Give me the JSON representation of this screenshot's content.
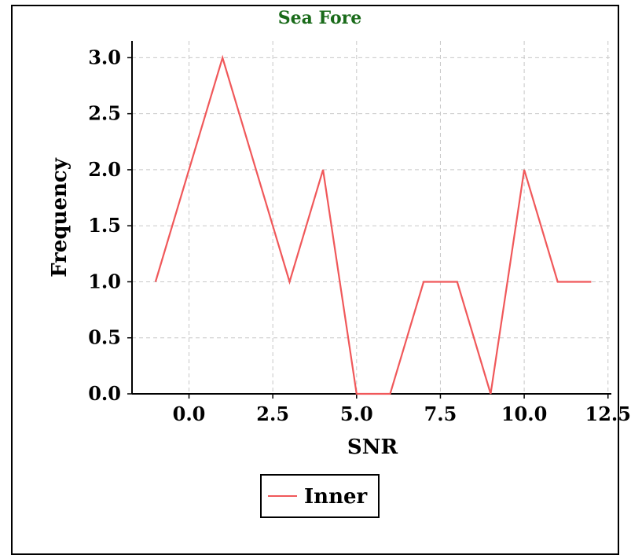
{
  "chart_data": {
    "type": "line",
    "title": "Sea Fore",
    "xlabel": "SNR",
    "ylabel": "Frequency",
    "xlim": [
      -1.7,
      12.6
    ],
    "ylim": [
      0.0,
      3.15
    ],
    "xticks": [
      "0.0",
      "2.5",
      "5.0",
      "7.5",
      "10.0",
      "12.5"
    ],
    "xtick_values": [
      0.0,
      2.5,
      5.0,
      7.5,
      10.0,
      12.5
    ],
    "yticks": [
      "0.0",
      "0.5",
      "1.0",
      "1.5",
      "2.0",
      "2.5",
      "3.0"
    ],
    "ytick_values": [
      0.0,
      0.5,
      1.0,
      1.5,
      2.0,
      2.5,
      3.0
    ],
    "grid": true,
    "legend_position": "bottom-center",
    "series": [
      {
        "name": "Inner",
        "color": "#f0585a",
        "x": [
          -1,
          0,
          1,
          2,
          3,
          4,
          5,
          6,
          7,
          8,
          9,
          10,
          11,
          12
        ],
        "y": [
          1,
          2,
          3,
          2,
          1,
          2,
          0,
          0,
          1,
          1,
          0,
          2,
          1,
          1
        ]
      }
    ]
  }
}
